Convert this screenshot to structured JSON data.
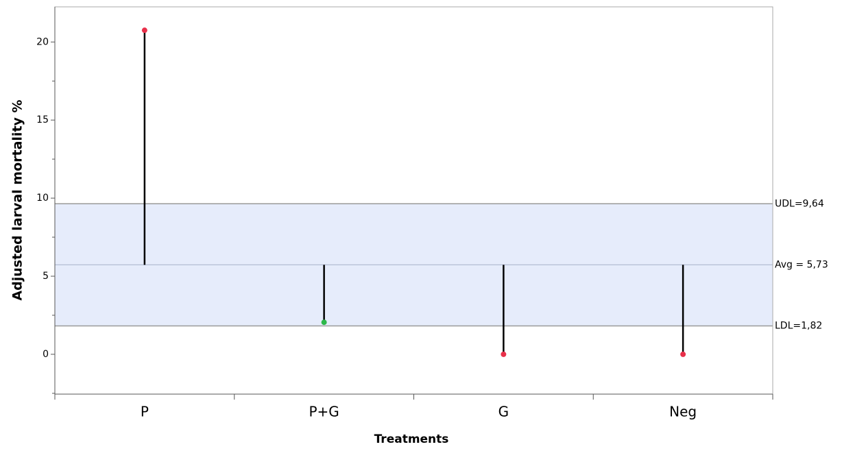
{
  "chart_data": {
    "type": "lollipop-anom",
    "xlabel": "Treatments",
    "ylabel": "Adjusted larval mortality %",
    "categories": [
      "P",
      "P+G",
      "G",
      "Neg"
    ],
    "values": [
      20.75,
      2.05,
      0,
      0
    ],
    "colors": [
      "#e8304a",
      "#2db84a",
      "#e8304a",
      "#e8304a"
    ],
    "center": {
      "value": 5.73,
      "label": "Avg = 5,73"
    },
    "upper_limit": {
      "value": 9.64,
      "label": "UDL=9,64"
    },
    "lower_limit": {
      "value": 1.82,
      "label": "LDL=1,82"
    },
    "ylim": [
      -2.55,
      22.25
    ],
    "yticks": [
      0,
      5,
      10,
      15,
      20
    ],
    "minor_yticks": [
      -2.5,
      2.5,
      7.5,
      12.5,
      17.5
    ],
    "band_color": "#e6ecfb"
  }
}
